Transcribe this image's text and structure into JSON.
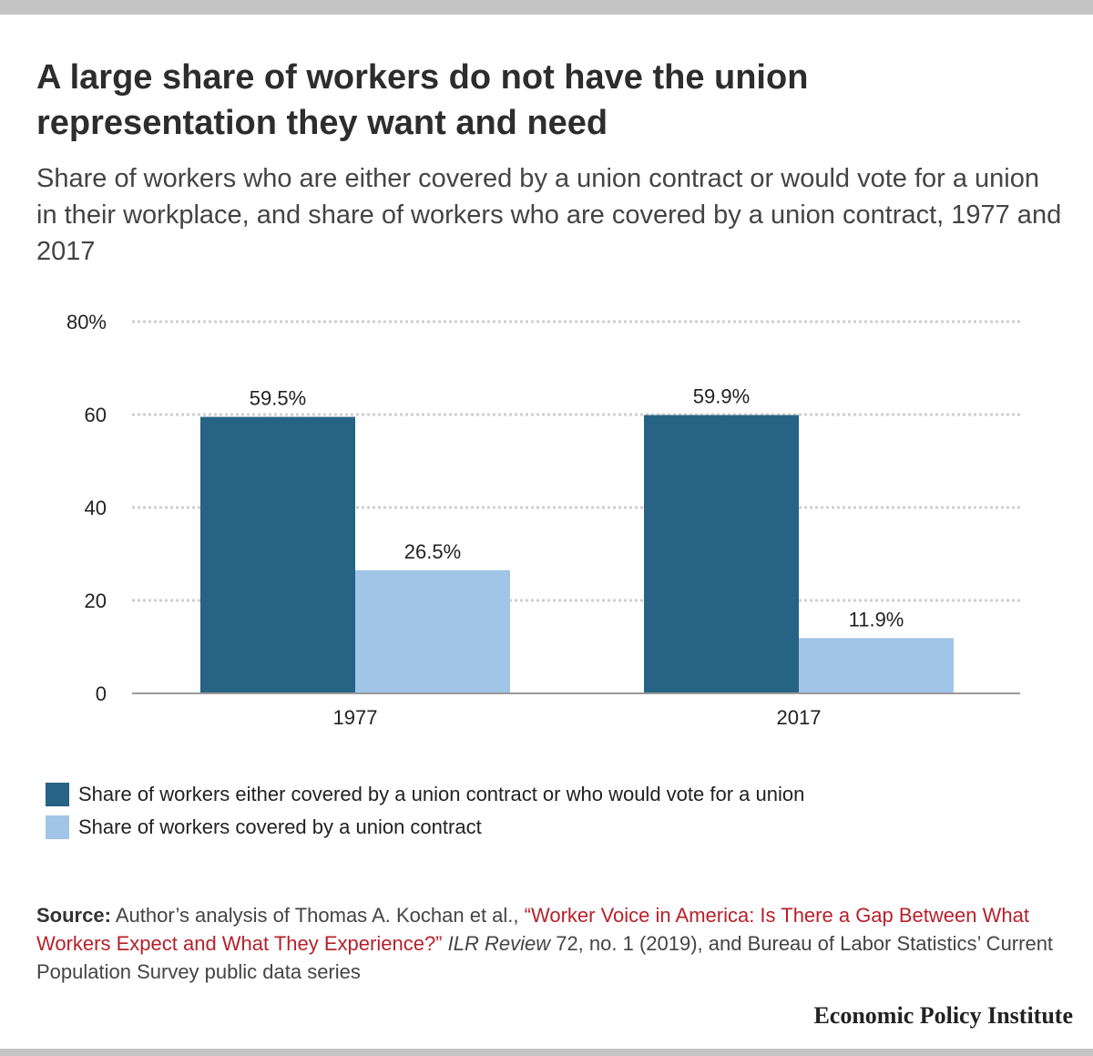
{
  "title": "A large share of workers do not have the union representation they want and need",
  "subtitle": "Share of workers who are either covered by a union contract or would vote for a union in their workplace, and share of workers who are covered by a union contract, 1977 and 2017",
  "chart_data": {
    "type": "bar",
    "categories": [
      "1977",
      "2017"
    ],
    "series": [
      {
        "name": "Share of workers either covered by a union contract or who would vote for a union",
        "values": [
          59.5,
          59.9
        ],
        "labels": [
          "59.5%",
          "59.9%"
        ],
        "color": "#266384"
      },
      {
        "name": "Share of workers covered by a union contract",
        "values": [
          26.5,
          11.9
        ],
        "labels": [
          "26.5%",
          "11.9%"
        ],
        "color": "#a1c5e7"
      }
    ],
    "ylim": [
      0,
      80
    ],
    "yticks": [
      0,
      20,
      40,
      60,
      80
    ],
    "ytick_labels": [
      "0",
      "20",
      "40",
      "60",
      "80%"
    ],
    "grid": true,
    "legend_position": "bottom-left",
    "xlabel": "",
    "ylabel": ""
  },
  "source": {
    "label": "Source:",
    "pre": " Author’s analysis of Thomas A. Kochan et al., ",
    "link": "“Worker Voice in America: Is There a Gap Between What Workers Expect and What They Experience?”",
    "journal": " ILR Review",
    "post": " 72, no. 1 (2019), and Bureau of Labor Statistics’ Current Population Survey public data series"
  },
  "logo": "Economic Policy Institute"
}
